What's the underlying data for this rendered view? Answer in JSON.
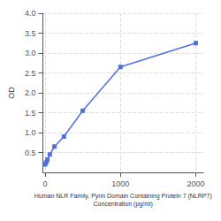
{
  "chart_data": {
    "type": "line",
    "xlabel": "Human NLR Family, Pyrin Domain Containing Protein 7 (NLRP7)\nConcentration (pg/ml)",
    "ylabel": "OD",
    "x": [
      0,
      15.625,
      31.25,
      62.5,
      125,
      250,
      500,
      1000,
      2000
    ],
    "values": [
      0.2,
      0.25,
      0.32,
      0.45,
      0.65,
      0.9,
      1.55,
      2.65,
      3.25
    ],
    "xlim": [
      -30,
      2100
    ],
    "xticks": [
      0,
      1000,
      2000
    ],
    "ylim": [
      0,
      4.0
    ],
    "yticks": [
      0.5,
      {
        "value": 1.0,
        "label": "1.0"
      },
      1.5,
      {
        "value": 2.0,
        "label": "2.0"
      },
      2.5,
      {
        "value": 3.0,
        "label": "3.0"
      },
      3.5,
      {
        "value": 4.0,
        "label": "4.0"
      }
    ],
    "marker": "square",
    "grid": true
  }
}
